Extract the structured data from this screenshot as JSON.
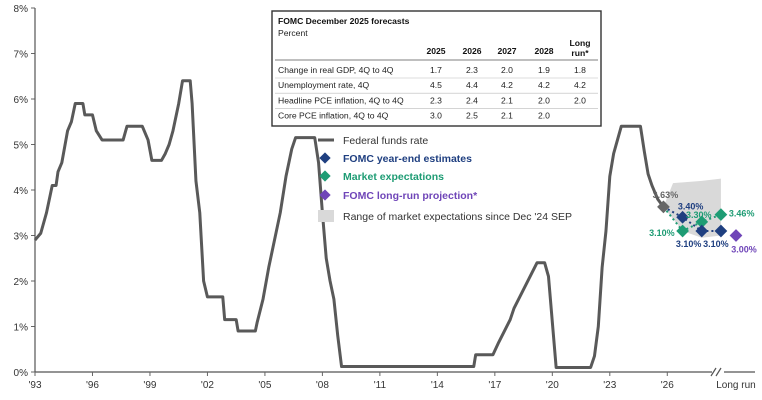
{
  "chart_data": {
    "type": "line",
    "y_axis": {
      "ticks": [
        "0%",
        "1%",
        "2%",
        "3%",
        "4%",
        "5%",
        "6%",
        "7%",
        "8%"
      ],
      "ylim": [
        0,
        8
      ]
    },
    "x_axis": {
      "ticks": [
        "'93",
        "'96",
        "'99",
        "'02",
        "'05",
        "'08",
        "'11",
        "'14",
        "'17",
        "'20",
        "'23",
        "'26",
        "Long run"
      ]
    },
    "series": [
      {
        "name": "Federal funds rate",
        "color": "#595959",
        "points": [
          [
            1993.0,
            2.9
          ],
          [
            1993.3,
            3.05
          ],
          [
            1993.6,
            3.5
          ],
          [
            1993.9,
            4.1
          ],
          [
            1994.1,
            4.1
          ],
          [
            1994.2,
            4.4
          ],
          [
            1994.4,
            4.6
          ],
          [
            1994.7,
            5.3
          ],
          [
            1994.9,
            5.5
          ],
          [
            1995.1,
            5.9
          ],
          [
            1995.5,
            5.9
          ],
          [
            1995.6,
            5.65
          ],
          [
            1996.0,
            5.65
          ],
          [
            1996.2,
            5.3
          ],
          [
            1996.5,
            5.1
          ],
          [
            1997.6,
            5.1
          ],
          [
            1997.8,
            5.4
          ],
          [
            1998.6,
            5.4
          ],
          [
            1998.9,
            5.1
          ],
          [
            1999.1,
            4.65
          ],
          [
            1999.6,
            4.65
          ],
          [
            1999.8,
            4.8
          ],
          [
            2000.0,
            5.0
          ],
          [
            2000.2,
            5.3
          ],
          [
            2000.5,
            5.9
          ],
          [
            2000.7,
            6.4
          ],
          [
            2001.1,
            6.4
          ],
          [
            2001.2,
            5.9
          ],
          [
            2001.4,
            4.2
          ],
          [
            2001.6,
            3.5
          ],
          [
            2001.8,
            2.0
          ],
          [
            2002.0,
            1.65
          ],
          [
            2002.8,
            1.65
          ],
          [
            2002.9,
            1.15
          ],
          [
            2003.5,
            1.15
          ],
          [
            2003.6,
            0.9
          ],
          [
            2004.5,
            0.9
          ],
          [
            2004.6,
            1.1
          ],
          [
            2004.9,
            1.6
          ],
          [
            2005.2,
            2.3
          ],
          [
            2005.5,
            2.9
          ],
          [
            2005.8,
            3.5
          ],
          [
            2006.1,
            4.3
          ],
          [
            2006.4,
            4.9
          ],
          [
            2006.6,
            5.15
          ],
          [
            2007.6,
            5.15
          ],
          [
            2007.8,
            4.6
          ],
          [
            2008.0,
            3.5
          ],
          [
            2008.2,
            2.5
          ],
          [
            2008.4,
            2.0
          ],
          [
            2008.6,
            1.6
          ],
          [
            2008.8,
            0.8
          ],
          [
            2009.0,
            0.12
          ],
          [
            2015.9,
            0.12
          ],
          [
            2016.0,
            0.38
          ],
          [
            2016.9,
            0.38
          ],
          [
            2017.2,
            0.65
          ],
          [
            2017.5,
            0.9
          ],
          [
            2017.8,
            1.15
          ],
          [
            2018.0,
            1.4
          ],
          [
            2018.3,
            1.65
          ],
          [
            2018.6,
            1.9
          ],
          [
            2018.9,
            2.15
          ],
          [
            2019.2,
            2.4
          ],
          [
            2019.6,
            2.4
          ],
          [
            2019.8,
            2.1
          ],
          [
            2019.9,
            1.6
          ],
          [
            2020.2,
            0.1
          ],
          [
            2022.0,
            0.1
          ],
          [
            2022.2,
            0.35
          ],
          [
            2022.4,
            1.0
          ],
          [
            2022.6,
            2.3
          ],
          [
            2022.8,
            3.1
          ],
          [
            2023.0,
            4.3
          ],
          [
            2023.2,
            4.8
          ],
          [
            2023.4,
            5.1
          ],
          [
            2023.6,
            5.4
          ],
          [
            2024.6,
            5.4
          ],
          [
            2024.8,
            4.85
          ],
          [
            2025.0,
            4.35
          ],
          [
            2025.2,
            4.1
          ],
          [
            2025.5,
            3.8
          ],
          [
            2025.8,
            3.63
          ]
        ]
      },
      {
        "name": "FOMC year-end estimates",
        "color": "#1f3f80",
        "points": [
          [
            2025.8,
            3.63
          ],
          [
            2026.8,
            3.4
          ],
          [
            2027.8,
            3.1
          ],
          [
            2028.8,
            3.1
          ]
        ],
        "labels": [
          "3.63%",
          "3.40%",
          "3.10%",
          "3.10%"
        ]
      },
      {
        "name": "Market expectations",
        "color": "#1e9c74",
        "points": [
          [
            2025.8,
            3.63
          ],
          [
            2026.8,
            3.1
          ],
          [
            2027.8,
            3.3
          ],
          [
            2028.8,
            3.46
          ]
        ],
        "labels": [
          "3.10%",
          "3.30%",
          "3.46%"
        ]
      },
      {
        "name": "FOMC long-run projection*",
        "color": "#6f45b8",
        "points": [
          [
            "Long run",
            3.0
          ]
        ],
        "labels": [
          "3.00%"
        ]
      },
      {
        "name": "Range of market expectations since Dec '24 SEP",
        "color": "#d9d9d9",
        "lower": [
          [
            2025.8,
            3.63
          ],
          [
            2026.8,
            3.1
          ],
          [
            2027.8,
            2.95
          ],
          [
            2028.8,
            3.0
          ]
        ],
        "upper": [
          [
            2025.8,
            3.63
          ],
          [
            2026.3,
            4.15
          ],
          [
            2027.8,
            4.2
          ],
          [
            2028.8,
            4.25
          ]
        ]
      }
    ]
  },
  "table": {
    "title": "FOMC December 2025 forecasts",
    "subtitle": "Percent",
    "headers": [
      "2025",
      "2026",
      "2027",
      "2028",
      "Long run*"
    ],
    "header_long_1": "Long",
    "header_long_2": "run*",
    "rows": [
      {
        "label": "Change in real GDP, 4Q to 4Q",
        "values": [
          "1.7",
          "2.3",
          "2.0",
          "1.9",
          "1.8"
        ]
      },
      {
        "label": "Unemployment rate, 4Q",
        "values": [
          "4.5",
          "4.4",
          "4.2",
          "4.2",
          "4.2"
        ]
      },
      {
        "label": "Headline PCE inflation, 4Q to 4Q",
        "values": [
          "2.3",
          "2.4",
          "2.1",
          "2.0",
          "2.0"
        ]
      },
      {
        "label": "Core PCE inflation, 4Q to 4Q",
        "values": [
          "3.0",
          "2.5",
          "2.1",
          "2.0",
          ""
        ]
      }
    ]
  }
}
